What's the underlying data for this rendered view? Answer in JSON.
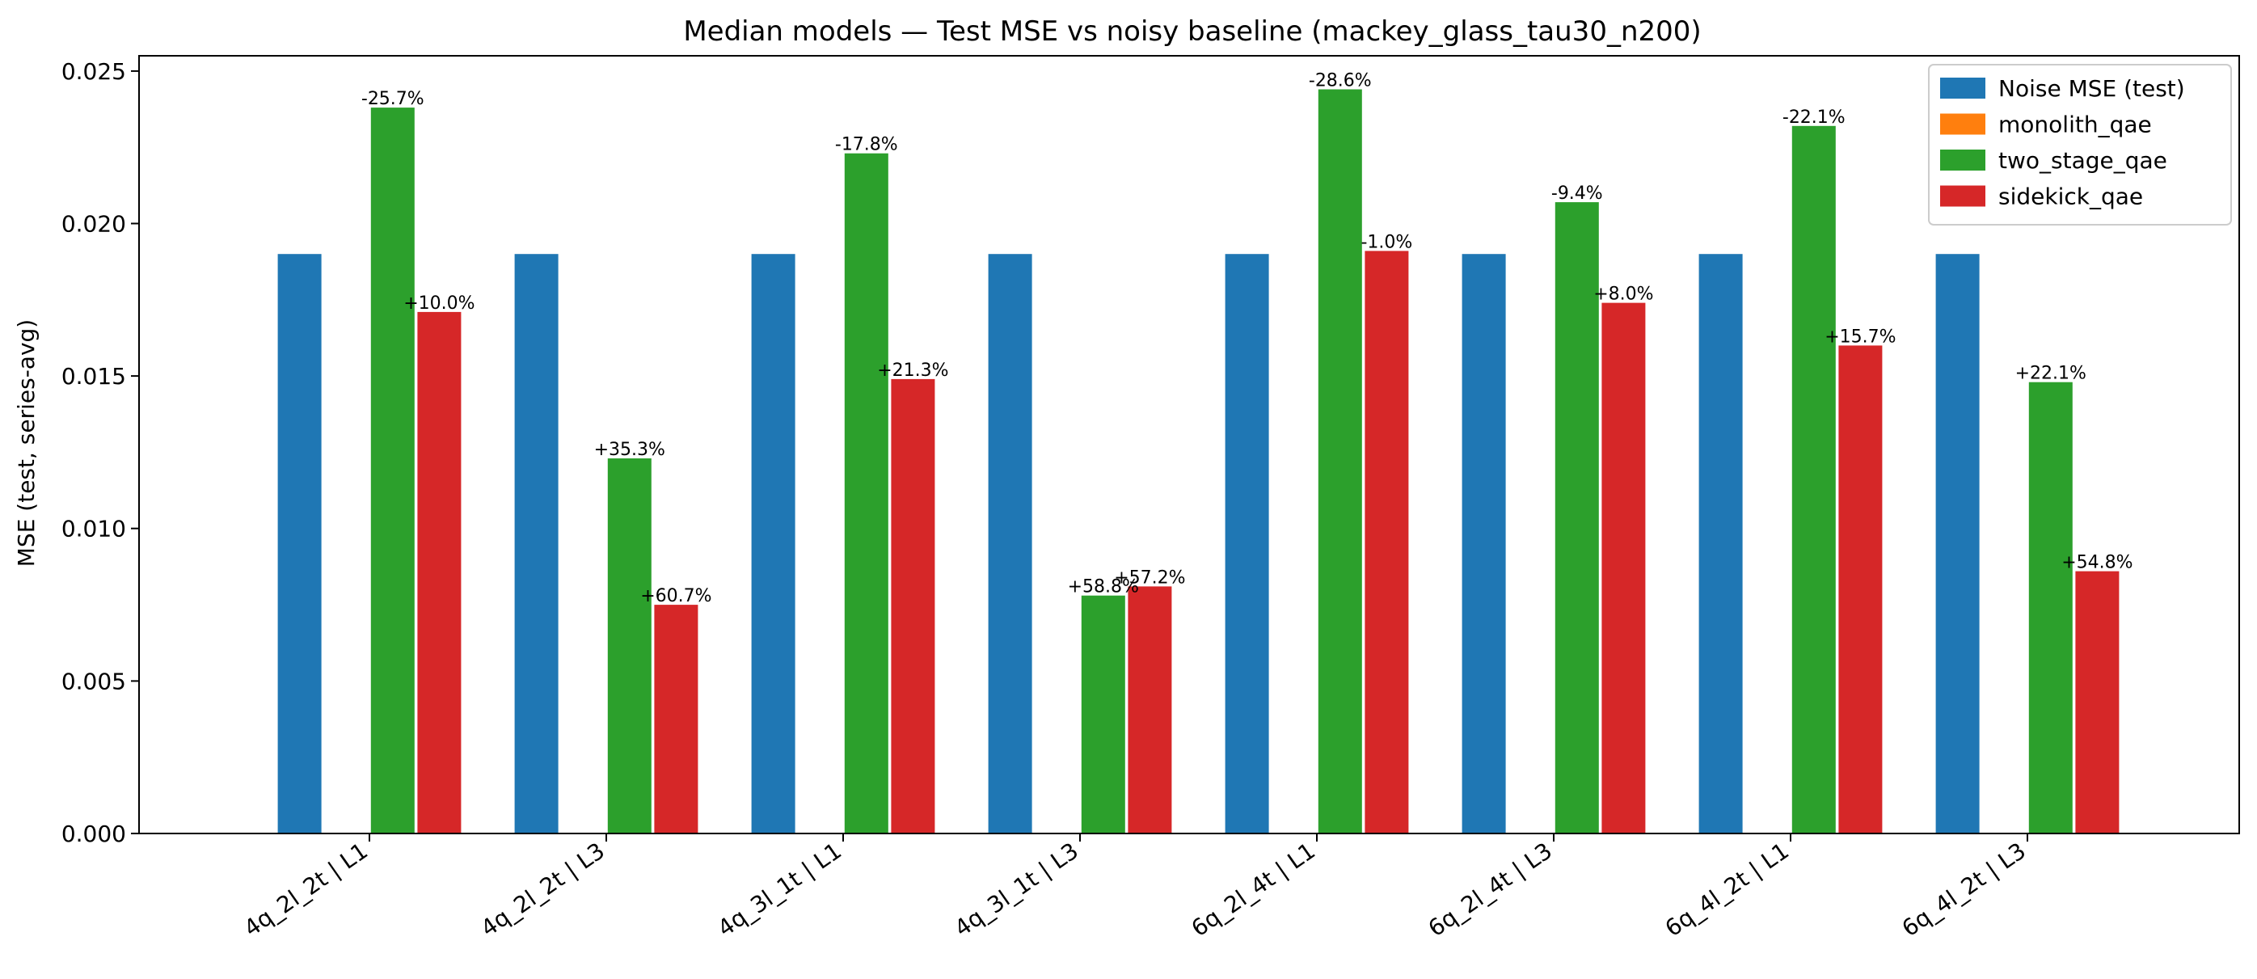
{
  "chart_data": {
    "type": "bar",
    "title": "Median models — Test MSE vs noisy baseline (mackey_glass_tau30_n200)",
    "xlabel": "",
    "ylabel": "MSE (test, series-avg)",
    "ylim": [
      0,
      0.0255
    ],
    "yticks": [
      0,
      0.005,
      0.01,
      0.015,
      0.02,
      0.025
    ],
    "ytick_labels": [
      "0.000",
      "0.005",
      "0.010",
      "0.015",
      "0.020",
      "0.025"
    ],
    "grid": false,
    "legend_position": "top-right",
    "categories": [
      "4q_2l_2t | L1",
      "4q_2l_2t | L3",
      "4q_3l_1t | L1",
      "4q_3l_1t | L3",
      "6q_2l_4t | L1",
      "6q_2l_4t | L3",
      "6q_4l_2t | L1",
      "6q_4l_2t | L3"
    ],
    "series": [
      {
        "name": "Noise MSE (test)",
        "color": "#1f77b4",
        "values": [
          0.019,
          0.019,
          0.019,
          0.019,
          0.019,
          0.019,
          0.019,
          0.019
        ],
        "labels": [
          "",
          "",
          "",
          "",
          "",
          "",
          "",
          ""
        ]
      },
      {
        "name": "monolith_qae",
        "color": "#ff7f0e",
        "values": [
          null,
          null,
          null,
          null,
          null,
          null,
          null,
          null
        ],
        "labels": [
          "",
          "",
          "",
          "",
          "",
          "",
          "",
          ""
        ]
      },
      {
        "name": "two_stage_qae",
        "color": "#2ca02c",
        "values": [
          0.0238,
          0.0123,
          0.0223,
          0.0078,
          0.0244,
          0.0207,
          0.0232,
          0.0148
        ],
        "labels": [
          "-25.7%",
          "+35.3%",
          "-17.8%",
          "+58.8%",
          "-28.6%",
          "-9.4%",
          "-22.1%",
          "+22.1%"
        ]
      },
      {
        "name": "sidekick_qae",
        "color": "#d62728",
        "values": [
          0.0171,
          0.0075,
          0.0149,
          0.0081,
          0.0191,
          0.0174,
          0.016,
          0.0086
        ],
        "labels": [
          "+10.0%",
          "+60.7%",
          "+21.3%",
          "+57.2%",
          "-1.0%",
          "+8.0%",
          "+15.7%",
          "+54.8%"
        ]
      }
    ]
  }
}
